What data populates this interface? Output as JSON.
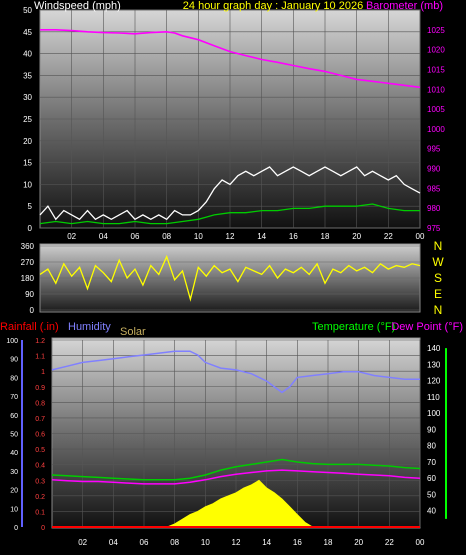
{
  "chart_data": [
    {
      "type": "line",
      "title": "24 hour graph day : January 10 2026",
      "ylabel": "Windspeed (mph)",
      "ylabel_right": "Barometer (mb)",
      "x_ticks": [
        "02",
        "04",
        "06",
        "08",
        "10",
        "12",
        "14",
        "16",
        "18",
        "20",
        "22",
        "00"
      ],
      "xlim": [
        0,
        24
      ],
      "ylim": [
        0,
        50
      ],
      "y_ticks": [
        0,
        5,
        10,
        15,
        20,
        25,
        30,
        35,
        40,
        45,
        50
      ],
      "ylim_right": [
        975,
        1030
      ],
      "y_ticks_right": [
        975,
        980,
        985,
        990,
        995,
        1000,
        1005,
        1010,
        1015,
        1020,
        1025
      ],
      "series": [
        {
          "role": "gust",
          "color": "#ffffff",
          "x": [
            0,
            0.5,
            1,
            1.5,
            2,
            2.5,
            3,
            3.5,
            4,
            4.5,
            5,
            5.5,
            6,
            6.5,
            7,
            7.5,
            8,
            8.5,
            9,
            9.5,
            10,
            10.5,
            11,
            11.5,
            12,
            12.5,
            13,
            13.5,
            14,
            14.5,
            15,
            15.5,
            16,
            16.5,
            17,
            17.5,
            18,
            18.5,
            19,
            19.5,
            20,
            20.5,
            21,
            21.5,
            22,
            22.5,
            23,
            23.5,
            24
          ],
          "values": [
            3,
            5,
            2,
            4,
            3,
            2,
            4,
            2,
            3,
            2,
            3,
            4,
            2,
            3,
            2,
            3,
            2,
            4,
            3,
            3,
            4,
            6,
            9,
            11,
            10,
            12,
            13,
            12,
            13,
            14,
            12,
            13,
            14,
            13,
            12,
            13,
            14,
            13,
            12,
            13,
            14,
            12,
            13,
            12,
            11,
            12,
            10,
            9,
            8
          ]
        },
        {
          "role": "average",
          "color": "#00cc00",
          "x": [
            0,
            1,
            2,
            3,
            4,
            5,
            6,
            7,
            8,
            9,
            10,
            10.5,
            11,
            12,
            13,
            14,
            15,
            16,
            17,
            18,
            19,
            20,
            21,
            22,
            23,
            24
          ],
          "values": [
            1,
            1.5,
            1,
            1.5,
            1,
            1,
            1.5,
            1,
            1,
            1.5,
            2,
            2.5,
            3,
            3.5,
            3.5,
            4,
            4,
            4.5,
            4.5,
            5,
            5,
            5,
            5.5,
            4.5,
            4,
            4
          ]
        },
        {
          "role": "barometer",
          "axis": "right",
          "color": "#ff00ff",
          "x": [
            0,
            1,
            2,
            3,
            4,
            5,
            6,
            7,
            8,
            8.5,
            9,
            10,
            11,
            12,
            13,
            14,
            15,
            16,
            17,
            18,
            19,
            20,
            21,
            22,
            23,
            24
          ],
          "values": [
            1025,
            1025,
            1024.8,
            1024.5,
            1024.3,
            1024.2,
            1024,
            1024.3,
            1024.5,
            1024.2,
            1023.5,
            1022.5,
            1021,
            1019.5,
            1018.5,
            1017.5,
            1016.8,
            1016,
            1015.2,
            1014.5,
            1013.5,
            1012.5,
            1012,
            1011.5,
            1011,
            1010.5
          ]
        }
      ]
    },
    {
      "type": "line",
      "y_ticks": [
        0,
        90,
        180,
        270,
        360
      ],
      "ylim": [
        0,
        360
      ],
      "compass_labels": [
        "N",
        "W",
        "S",
        "E",
        "N"
      ],
      "series": [
        {
          "role": "wind-direction",
          "color": "#ffff00",
          "x": [
            0,
            0.5,
            1,
            1.5,
            2,
            2.5,
            3,
            3.5,
            4,
            4.5,
            5,
            5.5,
            6,
            6.5,
            7,
            7.5,
            8,
            8.5,
            9,
            9.5,
            10,
            10.5,
            11,
            11.5,
            12,
            12.5,
            13,
            13.5,
            14,
            14.5,
            15,
            15.5,
            16,
            16.5,
            17,
            17.5,
            18,
            18.5,
            19,
            19.5,
            20,
            20.5,
            21,
            21.5,
            22,
            22.5,
            23,
            23.5,
            24
          ],
          "values": [
            200,
            230,
            150,
            260,
            190,
            240,
            120,
            250,
            210,
            160,
            280,
            180,
            230,
            140,
            250,
            200,
            300,
            170,
            220,
            60,
            240,
            190,
            250,
            210,
            230,
            160,
            240,
            220,
            200,
            250,
            180,
            230,
            210,
            240,
            200,
            260,
            150,
            230,
            210,
            250,
            220,
            240,
            210,
            260,
            230,
            250,
            240,
            260,
            250
          ]
        }
      ]
    },
    {
      "type": "line",
      "ylabel": "Rainfall (.in)",
      "ylabel2": "Humidity",
      "ylabel3": "Solar",
      "ylabel_right": "Temperature (°F)",
      "ylabel_right2": "Dew Point (°F)",
      "x_ticks": [
        "02",
        "04",
        "06",
        "08",
        "10",
        "12",
        "14",
        "16",
        "18",
        "20",
        "22",
        "00"
      ],
      "xlim": [
        0,
        24
      ],
      "rain_ticks": [
        "0",
        "0.1",
        "0.2",
        "0.3",
        "0.4",
        "0.5",
        "0.6",
        "0.7",
        "0.8",
        "0.9",
        "1",
        "1.1",
        "1.2"
      ],
      "rain_lim": [
        0,
        1.2
      ],
      "humidity_ticks": [
        0,
        10,
        20,
        30,
        40,
        50,
        60,
        70,
        80,
        90,
        100
      ],
      "humidity_lim": [
        0,
        100
      ],
      "temp_ticks": [
        40,
        50,
        60,
        70,
        80,
        90,
        100,
        110,
        120,
        130,
        140
      ],
      "temp_lim": [
        30,
        145
      ],
      "series": [
        {
          "role": "humidity",
          "axis": "humidity",
          "color": "#8080ff",
          "x": [
            0,
            1,
            2,
            3,
            4,
            5,
            6,
            7,
            8,
            9,
            9.5,
            10,
            11,
            12,
            13,
            14,
            14.5,
            15,
            15.5,
            16,
            17,
            18,
            19,
            20,
            21,
            22,
            23,
            24
          ],
          "values": [
            84,
            86,
            88,
            89,
            90,
            91,
            92,
            93,
            94,
            94,
            92,
            88,
            85,
            84,
            82,
            78,
            75,
            72,
            75,
            80,
            81,
            82,
            83,
            83,
            81,
            80,
            79,
            79
          ]
        },
        {
          "role": "temperature",
          "axis": "temp",
          "color": "#00cc00",
          "x": [
            0,
            1,
            2,
            3,
            4,
            5,
            6,
            7,
            8,
            9,
            10,
            11,
            12,
            13,
            14,
            15,
            16,
            17,
            18,
            19,
            20,
            21,
            22,
            23,
            24
          ],
          "values": [
            62,
            61.5,
            61,
            60.5,
            60,
            59.5,
            59,
            59,
            59,
            60,
            62,
            65,
            67,
            68.5,
            70,
            71.5,
            70,
            69,
            68.5,
            68.5,
            68.5,
            68,
            67.5,
            66.5,
            66
          ]
        },
        {
          "role": "dew-point",
          "axis": "temp",
          "color": "#ff00ff",
          "x": [
            0,
            1,
            2,
            3,
            4,
            5,
            6,
            7,
            8,
            9,
            10,
            11,
            12,
            13,
            14,
            15,
            16,
            17,
            18,
            19,
            20,
            21,
            22,
            23,
            24
          ],
          "values": [
            59,
            58.5,
            58,
            58,
            57.5,
            57,
            56.5,
            56.5,
            56.5,
            57.5,
            59,
            61,
            62.5,
            63.5,
            64.5,
            65,
            64.5,
            64,
            63.5,
            63,
            62.5,
            62,
            61.5,
            60.5,
            60
          ]
        },
        {
          "role": "solar",
          "axis": "rain",
          "color": "#ffff00",
          "x": [
            7.5,
            8,
            8.5,
            9,
            9.5,
            10,
            10.5,
            11,
            11.5,
            12,
            12.5,
            13,
            13.5,
            14,
            14.5,
            15,
            15.5,
            16,
            16.5,
            17
          ],
          "values": [
            0,
            0.02,
            0.05,
            0.08,
            0.1,
            0.13,
            0.15,
            0.18,
            0.2,
            0.22,
            0.25,
            0.27,
            0.3,
            0.25,
            0.22,
            0.18,
            0.13,
            0.08,
            0.03,
            0
          ]
        },
        {
          "role": "rainfall",
          "axis": "rain",
          "color": "#ff0000",
          "x": [
            0,
            24
          ],
          "values": [
            0,
            0
          ]
        }
      ]
    }
  ]
}
